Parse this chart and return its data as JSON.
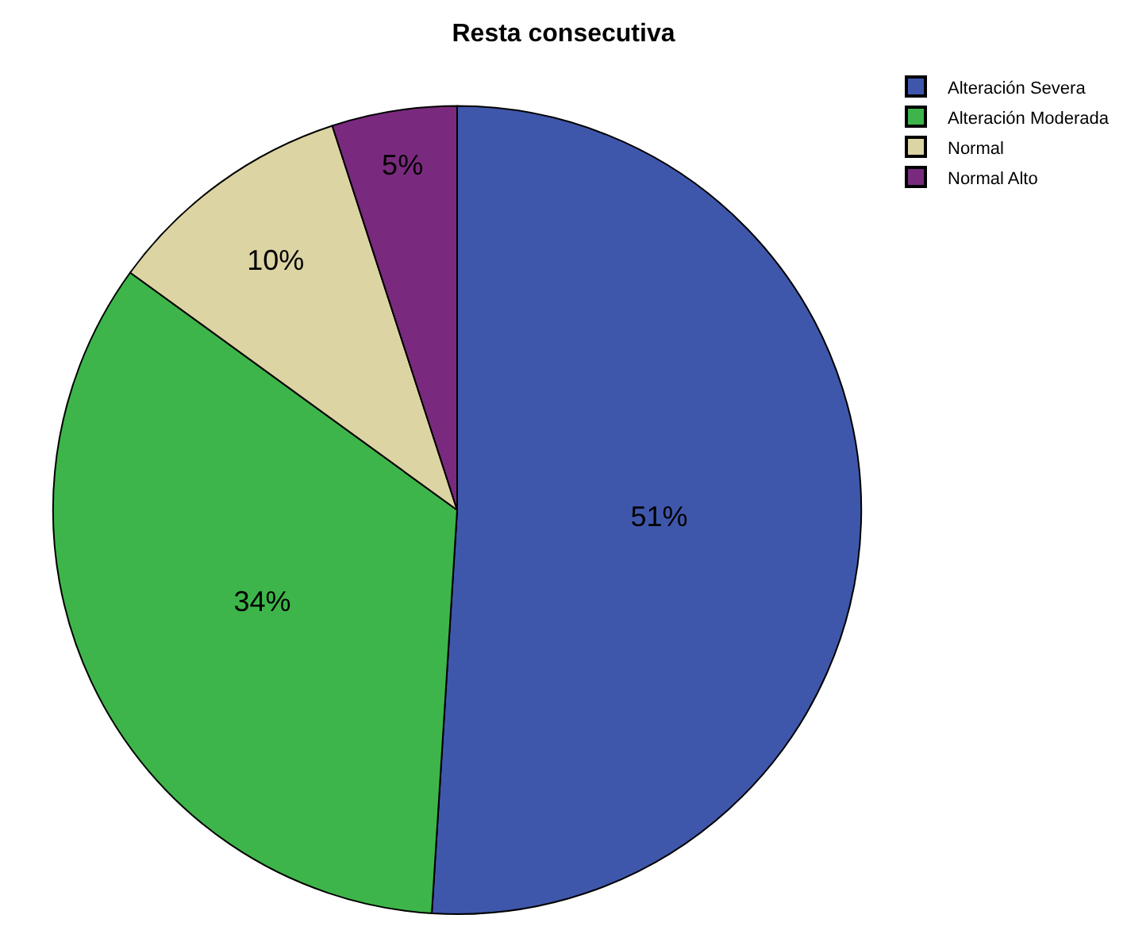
{
  "chart_data": {
    "type": "pie",
    "title": "Resta consecutiva",
    "categories": [
      "Alteración Severa",
      "Alteración Moderada",
      "Normal",
      "Normal Alto"
    ],
    "values": [
      51,
      34,
      10,
      5
    ],
    "colors": [
      "#3f57ab",
      "#3db54a",
      "#dcd4a3",
      "#7a2a7e"
    ],
    "value_labels": [
      "51%",
      "34%",
      "10%",
      "5%"
    ],
    "legend": "top right"
  }
}
